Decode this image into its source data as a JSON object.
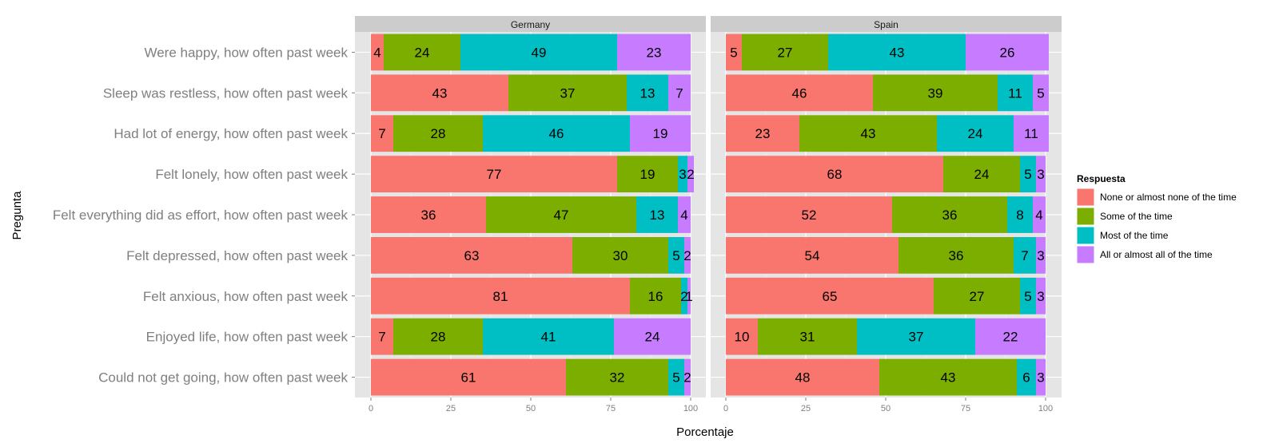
{
  "chart_data": {
    "type": "bar",
    "orientation": "horizontal",
    "stacked": true,
    "xlabel": "Porcentaje",
    "ylabel": "Pregunta",
    "xlim": [
      0,
      100
    ],
    "xticks": [
      "0",
      "25",
      "50",
      "75",
      "100"
    ],
    "grid": true,
    "legend": {
      "title": "Respuesta",
      "position": "right",
      "entries": [
        {
          "name": "None or almost none of the time",
          "color": "#F8766D"
        },
        {
          "name": "Some of the time",
          "color": "#7CAE00"
        },
        {
          "name": "Most of the time",
          "color": "#00BFC4"
        },
        {
          "name": "All or almost all of the time",
          "color": "#C77CFF"
        }
      ]
    },
    "categories": [
      "Were happy, how often past week",
      "Sleep was restless, how often past week",
      "Had lot of energy, how often past week",
      "Felt lonely, how often past week",
      "Felt everything did as effort, how often past week",
      "Felt depressed, how often past week",
      "Felt anxious, how often past week",
      "Enjoyed life, how often past week",
      "Could not get going, how often past week"
    ],
    "panels": [
      {
        "name": "Germany",
        "series": [
          {
            "name": "None or almost none of the time",
            "values": [
              4,
              43,
              7,
              77,
              36,
              63,
              81,
              7,
              61
            ]
          },
          {
            "name": "Some of the time",
            "values": [
              24,
              37,
              28,
              19,
              47,
              30,
              16,
              28,
              32
            ]
          },
          {
            "name": "Most of the time",
            "values": [
              49,
              13,
              46,
              3,
              13,
              5,
              2,
              41,
              5
            ]
          },
          {
            "name": "All or almost all of the time",
            "values": [
              23,
              7,
              19,
              2,
              4,
              2,
              1,
              24,
              2
            ]
          }
        ]
      },
      {
        "name": "Spain",
        "series": [
          {
            "name": "None or almost none of the time",
            "values": [
              5,
              46,
              23,
              68,
              52,
              54,
              65,
              10,
              48
            ]
          },
          {
            "name": "Some of the time",
            "values": [
              27,
              39,
              43,
              24,
              36,
              36,
              27,
              31,
              43
            ]
          },
          {
            "name": "Most of the time",
            "values": [
              43,
              11,
              24,
              5,
              8,
              7,
              5,
              37,
              6
            ]
          },
          {
            "name": "All or almost all of the time",
            "values": [
              26,
              5,
              11,
              3,
              4,
              3,
              3,
              22,
              3
            ]
          }
        ]
      }
    ]
  }
}
